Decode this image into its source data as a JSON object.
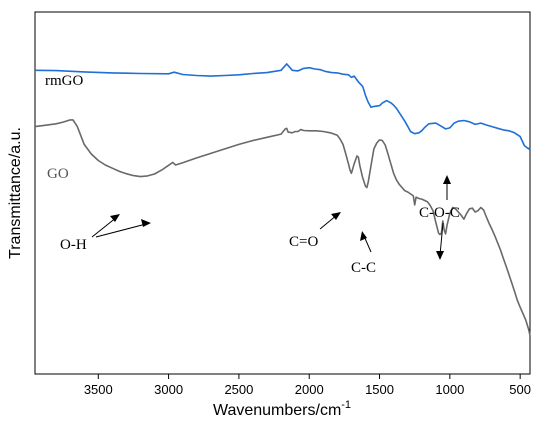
{
  "chart_data": {
    "type": "line",
    "xlabel": "Wavenumbers/cm",
    "xlabel_superscript": "-1",
    "ylabel": "Transmittance/a.u.",
    "xlim": [
      3950,
      430
    ],
    "ylim": [
      0,
      100
    ],
    "x_reversed": true,
    "y_ticks_shown": false,
    "grid": false,
    "x_ticks": [
      3500,
      3000,
      2500,
      2000,
      1500,
      1000,
      500
    ],
    "x_tick_labels": [
      "3500",
      "3000",
      "2500",
      "2000",
      "1500",
      "1000",
      "500"
    ],
    "series": [
      {
        "name": "rmGO",
        "color": "#1f6fd6",
        "x": [
          3950,
          3800,
          3600,
          3400,
          3200,
          3000,
          2960,
          2900,
          2800,
          2700,
          2600,
          2500,
          2400,
          2300,
          2200,
          2160,
          2120,
          2080,
          2040,
          2000,
          1960,
          1920,
          1880,
          1840,
          1800,
          1760,
          1720,
          1700,
          1680,
          1650,
          1620,
          1600,
          1580,
          1560,
          1540,
          1500,
          1480,
          1450,
          1420,
          1400,
          1380,
          1350,
          1320,
          1300,
          1280,
          1250,
          1220,
          1200,
          1180,
          1150,
          1100,
          1060,
          1030,
          1000,
          970,
          940,
          900,
          860,
          820,
          780,
          740,
          700,
          660,
          620,
          580,
          540,
          500,
          470,
          440,
          430
        ],
        "values": [
          85.0,
          84.9,
          84.5,
          84.2,
          84.0,
          83.9,
          84.4,
          83.7,
          83.4,
          83.2,
          83.4,
          83.6,
          84.0,
          84.3,
          85.0,
          87.0,
          85.0,
          84.8,
          85.6,
          85.8,
          85.4,
          85.2,
          84.6,
          84.3,
          84.2,
          83.8,
          83.6,
          82.8,
          83.2,
          81.4,
          80.0,
          77.2,
          75.0,
          73.5,
          73.8,
          74.0,
          74.8,
          75.6,
          74.9,
          74.2,
          73.2,
          71.2,
          69.2,
          67.6,
          66.0,
          65.3,
          65.6,
          66.2,
          67.2,
          68.4,
          68.6,
          67.6,
          66.8,
          67.1,
          68.6,
          69.2,
          69.4,
          69.0,
          68.2,
          68.6,
          68.0,
          67.5,
          67.0,
          66.5,
          66.2,
          65.6,
          64.4,
          61.6,
          60.6,
          61.0
        ]
      },
      {
        "name": "GO",
        "color": "#696969",
        "x": [
          3950,
          3900,
          3800,
          3750,
          3700,
          3680,
          3650,
          3600,
          3550,
          3500,
          3450,
          3400,
          3350,
          3300,
          3250,
          3200,
          3150,
          3100,
          3050,
          3000,
          2970,
          2950,
          2900,
          2800,
          2700,
          2600,
          2500,
          2400,
          2300,
          2200,
          2170,
          2160,
          2150,
          2120,
          2100,
          2080,
          2060,
          2040,
          2000,
          1950,
          1900,
          1850,
          1800,
          1780,
          1760,
          1740,
          1720,
          1710,
          1700,
          1680,
          1660,
          1650,
          1640,
          1620,
          1600,
          1590,
          1580,
          1560,
          1540,
          1520,
          1500,
          1480,
          1460,
          1440,
          1420,
          1400,
          1380,
          1360,
          1340,
          1320,
          1300,
          1280,
          1260,
          1250,
          1240,
          1220,
          1200,
          1180,
          1160,
          1140,
          1120,
          1100,
          1080,
          1070,
          1060,
          1050,
          1040,
          1030,
          1020,
          1000,
          980,
          960,
          940,
          920,
          900,
          880,
          860,
          840,
          820,
          800,
          780,
          760,
          740,
          720,
          700,
          680,
          660,
          640,
          620,
          600,
          580,
          560,
          540,
          520,
          500,
          480,
          460,
          440,
          430
        ],
        "values": [
          67.5,
          67.8,
          68.4,
          68.9,
          69.6,
          69.6,
          67.6,
          62.0,
          59.0,
          57.0,
          55.6,
          54.6,
          53.6,
          52.9,
          52.3,
          52.0,
          52.2,
          52.8,
          54.0,
          55.5,
          56.4,
          55.6,
          56.3,
          57.8,
          59.2,
          60.6,
          62.0,
          63.2,
          64.2,
          65.2,
          66.8,
          67.0,
          65.8,
          65.6,
          66.0,
          66.0,
          66.6,
          66.3,
          66.2,
          66.2,
          66.0,
          65.6,
          64.8,
          63.6,
          62.0,
          59.0,
          55.8,
          54.0,
          53.0,
          56.0,
          58.4,
          58.0,
          55.4,
          51.6,
          49.0,
          48.6,
          50.4,
          55.6,
          60.6,
          62.4,
          63.4,
          63.2,
          61.8,
          59.0,
          56.0,
          53.0,
          51.0,
          49.6,
          48.6,
          47.6,
          47.2,
          46.6,
          46.0,
          43.2,
          45.6,
          45.2,
          45.0,
          44.6,
          44.2,
          43.0,
          41.4,
          37.8,
          34.4,
          34.0,
          34.4,
          38.2,
          35.4,
          34.2,
          36.8,
          40.6,
          42.4,
          42.0,
          41.0,
          40.0,
          38.8,
          40.6,
          42.0,
          42.2,
          41.0,
          41.4,
          42.4,
          41.6,
          39.4,
          37.4,
          35.6,
          33.6,
          31.4,
          29.2,
          26.6,
          24.2,
          21.6,
          19.0,
          16.4,
          13.6,
          11.4,
          9.4,
          7.4,
          4.6,
          2.6
        ]
      }
    ],
    "annotations": [
      "O-H",
      "C=O",
      "C-C",
      "C-O-C"
    ]
  }
}
